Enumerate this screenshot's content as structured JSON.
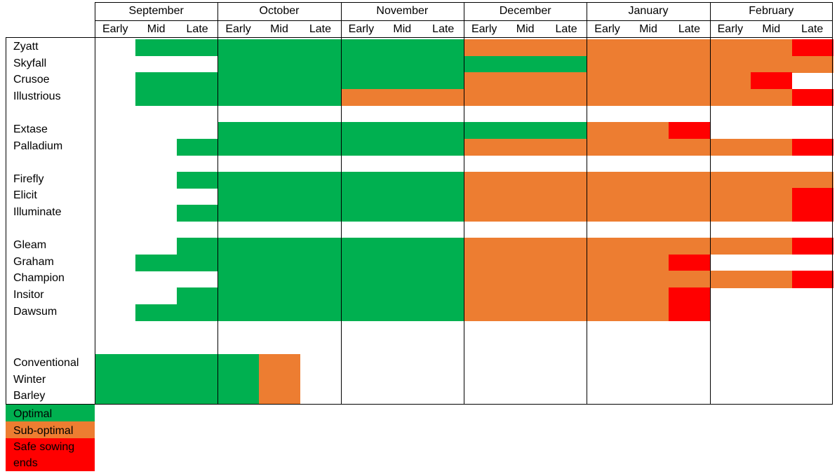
{
  "chart_data": {
    "type": "table",
    "months": [
      "September",
      "October",
      "November",
      "December",
      "January",
      "February"
    ],
    "periods": [
      "Early",
      "Mid",
      "Late"
    ],
    "legend": [
      {
        "key": "optimal",
        "label": "Optimal",
        "color": "#00B050"
      },
      {
        "key": "suboptimal",
        "label": "Sub-optimal",
        "color": "#ED7D31"
      },
      {
        "key": "safe_end",
        "label": "Safe sowing ends",
        "color": "#FF0000"
      }
    ],
    "varieties": [
      {
        "name": "Zyatt",
        "status": "-OOOOOOOOSSSSSSSSR---"
      },
      {
        "name": "Skyfall",
        "status": "---OOOOOOOOOSSSSSSSR"
      },
      {
        "name": "Crusoe",
        "status": "-OOOOOOOOSSSSSSSR---"
      },
      {
        "name": "Illustrious",
        "status": "-OOOOOSSSSSSSSSSSR-"
      },
      {
        "name": "Extase",
        "status": "---OOOOOOOOOSSR---"
      },
      {
        "name": "Palladium",
        "status": "--OOOOOOOSSSSSSSSR-"
      },
      {
        "name": "Firefly",
        "status": "--OOOOOOOSSSSSSSSSR"
      },
      {
        "name": "Elicit",
        "status": "---OOOOOOSSSSSSSSR-"
      },
      {
        "name": "Illuminate",
        "status": "--OOOOOOOSSSSSSSSR-"
      },
      {
        "name": "Gleam",
        "status": "--OOOOOOOSSSSSSSSR-"
      },
      {
        "name": "Graham",
        "status": "-OOOOOOOOSSSSSR---"
      },
      {
        "name": "Champion",
        "status": "---OOOOOOSSSSSSSSR-"
      },
      {
        "name": "Insitor",
        "status": "--OOOOOOOSSSSSR---"
      },
      {
        "name": "Dawsum",
        "status": "-OOOOOOOOSSSSSR---"
      }
    ],
    "conventional": {
      "lines": [
        "Conventional",
        "Winter",
        "Barley"
      ],
      "status": "OOOOS-------------"
    }
  }
}
